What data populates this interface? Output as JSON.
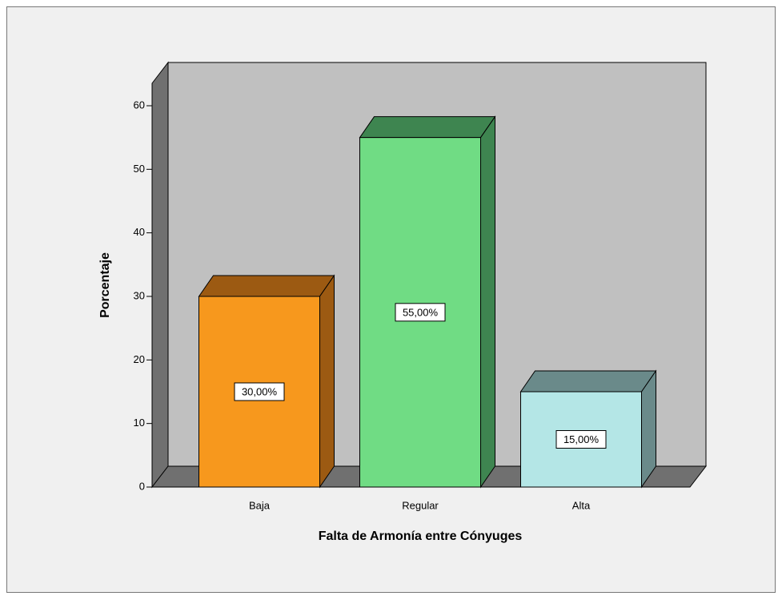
{
  "chart_data": {
    "type": "bar3d",
    "xlabel": "Falta de Armonía entre Cónyuges",
    "ylabel": "Porcentaje",
    "categories": [
      "Baja",
      "Regular",
      "Alta"
    ],
    "values": [
      30,
      55,
      15
    ],
    "value_labels": [
      "30,00%",
      "55,00%",
      "15,00%"
    ],
    "colors": [
      "#f7981d",
      "#70dc84",
      "#b4e6e6"
    ],
    "side_colors": [
      "#9c5a12",
      "#3e8550",
      "#6a8a8a"
    ],
    "ylim": [
      0,
      60
    ],
    "yticks": [
      0,
      10,
      20,
      30,
      40,
      50,
      60
    ]
  }
}
